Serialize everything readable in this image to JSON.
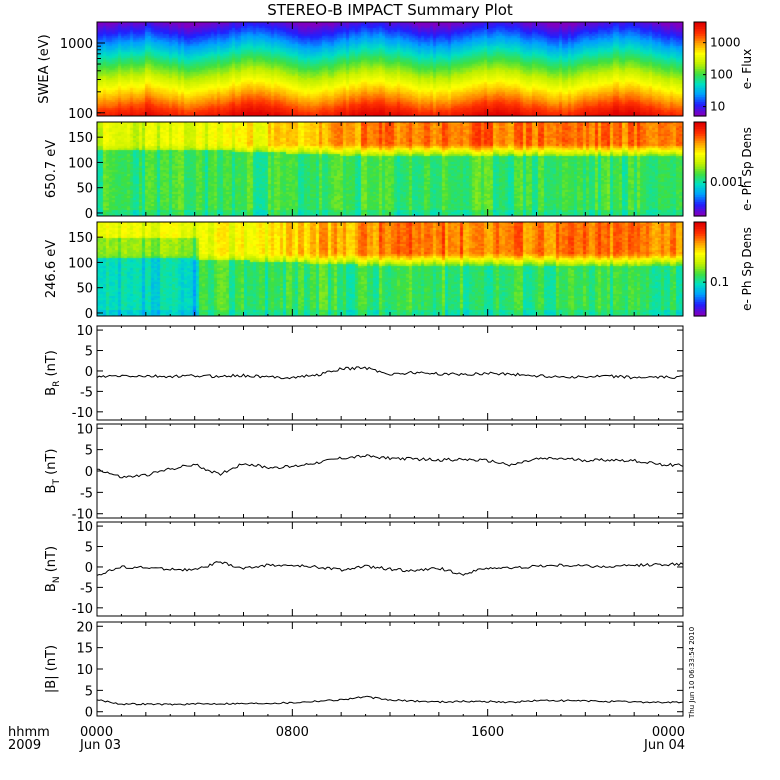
{
  "title": "STEREO-B IMPACT Summary Plot",
  "timestamp_text": "Thu Jun 10 06:33:54 2010",
  "x_axis": {
    "ticks": [
      "0000",
      "0800",
      "1600",
      "0000"
    ],
    "tick_hours": [
      0,
      8,
      16,
      24
    ],
    "date_labels": [
      "Jun 03",
      "Jun 04"
    ],
    "row_label_1": "hhmm",
    "row_label_2": "2009"
  },
  "colors": {
    "colorbar": [
      "#8000c0",
      "#2020ff",
      "#00a0ff",
      "#00e0c0",
      "#40e040",
      "#c0f000",
      "#ffff00",
      "#ffa000",
      "#ff3000",
      "#e00000"
    ],
    "line": "#000000"
  },
  "chart_data": [
    {
      "type": "heatmap",
      "ylabel": "SWEA (eV)",
      "yscale": "log",
      "yticks": [
        "1000",
        "100"
      ],
      "colorbar_label": "e- Flux",
      "colorbar_ticks": [
        "1000",
        "100",
        "10"
      ]
    },
    {
      "type": "heatmap",
      "ylabel": "650.7 eV",
      "ylim": [
        0,
        180
      ],
      "yticks": [
        "150",
        "100",
        "50",
        "0"
      ],
      "colorbar_label": "e- Ph Sp Dens",
      "colorbar_ticks": [
        "0.001"
      ]
    },
    {
      "type": "heatmap",
      "ylabel": "246.6 eV",
      "ylim": [
        0,
        180
      ],
      "yticks": [
        "150",
        "100",
        "50",
        "0"
      ],
      "colorbar_label": "e- Ph Sp Dens",
      "colorbar_ticks": [
        "0.1"
      ]
    },
    {
      "type": "line",
      "ylabel": "B_R (nT)",
      "ylabel_main": "B",
      "ylabel_sub": "R",
      "ylabel_unit": " (nT)",
      "ylim": [
        -12,
        11
      ],
      "yticks": [
        "10",
        "5",
        "0",
        "-5",
        "-10"
      ],
      "x_hours": [
        0,
        1,
        2,
        3,
        4,
        5,
        6,
        7,
        8,
        9,
        10,
        11,
        12,
        13,
        14,
        15,
        16,
        17,
        18,
        19,
        20,
        21,
        22,
        23,
        24
      ],
      "values": [
        -1.5,
        -1.2,
        -1.3,
        -1.4,
        -1.2,
        -1.3,
        -1.1,
        -1.5,
        -1.6,
        -1.0,
        0.5,
        0.8,
        -0.8,
        -0.4,
        -0.7,
        -0.9,
        -0.5,
        -0.8,
        -1.2,
        -1.4,
        -1.5,
        -1.3,
        -1.6,
        -1.6,
        -1.5
      ]
    },
    {
      "type": "line",
      "ylabel": "B_T (nT)",
      "ylabel_main": "B",
      "ylabel_sub": "T",
      "ylabel_unit": " (nT)",
      "ylim": [
        -11,
        11
      ],
      "yticks": [
        "10",
        "5",
        "0",
        "-5",
        "-10"
      ],
      "x_hours": [
        0,
        1,
        2,
        3,
        4,
        5,
        6,
        7,
        8,
        9,
        10,
        11,
        12,
        13,
        14,
        15,
        16,
        17,
        18,
        19,
        20,
        21,
        22,
        23,
        24
      ],
      "values": [
        0.5,
        -1.5,
        -1.0,
        0.5,
        1.5,
        -0.8,
        1.8,
        0.8,
        1.0,
        2.0,
        3.0,
        3.5,
        3.0,
        2.8,
        2.6,
        2.7,
        2.4,
        1.4,
        2.8,
        2.9,
        2.5,
        2.6,
        2.4,
        1.6,
        1.3
      ]
    },
    {
      "type": "line",
      "ylabel": "B_N (nT)",
      "ylabel_main": "B",
      "ylabel_sub": "N",
      "ylabel_unit": " (nT)",
      "ylim": [
        -12,
        11
      ],
      "yticks": [
        "10",
        "5",
        "0",
        "-5",
        "-10"
      ],
      "x_hours": [
        0,
        1,
        2,
        3,
        4,
        5,
        6,
        7,
        8,
        9,
        10,
        11,
        12,
        13,
        14,
        15,
        16,
        17,
        18,
        19,
        20,
        21,
        22,
        23,
        24
      ],
      "values": [
        -2.0,
        0.0,
        -0.2,
        -0.5,
        -0.8,
        1.2,
        -0.4,
        0.5,
        0.3,
        0.0,
        -0.7,
        0.1,
        -0.5,
        -1.0,
        -0.3,
        -1.8,
        -0.2,
        -0.3,
        0.2,
        0.4,
        0.3,
        0.0,
        0.4,
        0.6,
        0.7
      ]
    },
    {
      "type": "line",
      "ylabel": "|B| (nT)",
      "ylabel_main": "|B|",
      "ylabel_sub": "",
      "ylabel_unit": " (nT)",
      "ylim": [
        -1,
        21
      ],
      "yticks": [
        "20",
        "15",
        "10",
        "5",
        "0"
      ],
      "x_hours": [
        0,
        1,
        2,
        3,
        4,
        5,
        6,
        7,
        8,
        9,
        10,
        11,
        12,
        13,
        14,
        15,
        16,
        17,
        18,
        19,
        20,
        21,
        22,
        23,
        24
      ],
      "values": [
        2.8,
        1.8,
        1.8,
        1.7,
        1.8,
        1.9,
        1.9,
        2.0,
        2.1,
        2.5,
        2.8,
        3.5,
        2.7,
        2.5,
        2.3,
        2.4,
        2.4,
        2.2,
        2.6,
        2.6,
        2.5,
        2.4,
        2.3,
        2.2,
        2.2
      ]
    }
  ]
}
